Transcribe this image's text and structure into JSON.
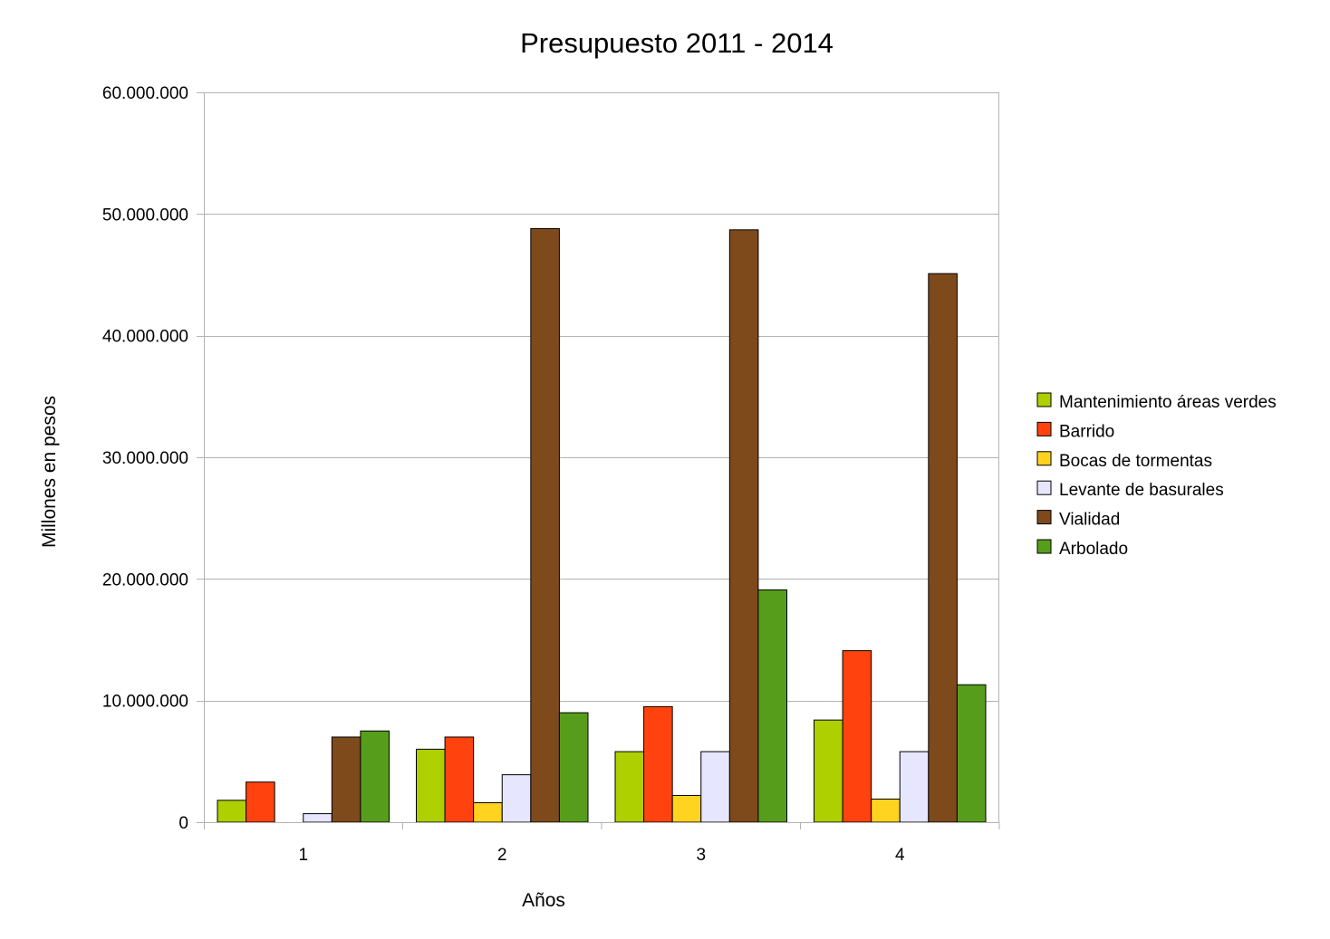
{
  "chart_data": {
    "type": "bar",
    "title": "Presupuesto 2011 - 2014",
    "xlabel": "Años",
    "ylabel": "Millones en pesos",
    "ylim": [
      0,
      60000000
    ],
    "ytick_values": [
      0,
      10000000,
      20000000,
      30000000,
      40000000,
      50000000,
      60000000
    ],
    "ytick_labels": [
      "0",
      "10.000.000",
      "20.000.000",
      "30.000.000",
      "40.000.000",
      "50.000.000",
      "60.000.000"
    ],
    "categories": [
      "1",
      "2",
      "3",
      "4"
    ],
    "grid": true,
    "legend_position": "right",
    "series": [
      {
        "name": "Mantenimiento áreas verdes",
        "color": "#aecf00",
        "values": [
          1800000,
          6000000,
          5800000,
          8400000
        ]
      },
      {
        "name": "Barrido",
        "color": "#ff420e",
        "values": [
          3300000,
          7000000,
          9500000,
          14100000
        ]
      },
      {
        "name": "Bocas de tormentas",
        "color": "#ffd320",
        "values": [
          0,
          1600000,
          2200000,
          1900000
        ]
      },
      {
        "name": "Levante de basurales",
        "color": "#e6e6ff",
        "values": [
          700000,
          3900000,
          5800000,
          5800000
        ]
      },
      {
        "name": "Vialidad",
        "color": "#7e4a1c",
        "values": [
          7000000,
          48800000,
          48700000,
          45100000
        ]
      },
      {
        "name": "Arbolado",
        "color": "#579d1c",
        "values": [
          7500000,
          9000000,
          19100000,
          11300000
        ]
      }
    ]
  }
}
